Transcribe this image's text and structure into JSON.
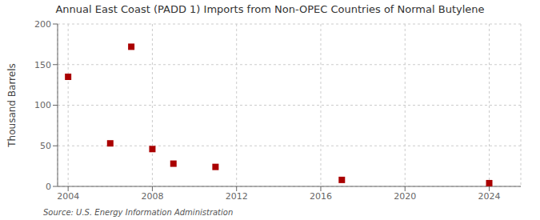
{
  "chart_data": {
    "type": "scatter",
    "title": "Annual East Coast (PADD 1) Imports from Non-OPEC Countries of Normal Butylene",
    "ylabel": "Thousand Barrels",
    "annotations": [
      "Source: U.S. Energy Information Administration"
    ],
    "x": [
      2004,
      2006,
      2007,
      2008,
      2009,
      2011,
      2017,
      2024
    ],
    "values": [
      135,
      53,
      172,
      46,
      28,
      24,
      8,
      4
    ],
    "color": "#aa0000",
    "marker": "square",
    "xlim": [
      2003.5,
      2025.5
    ],
    "xticks": [
      2004,
      2008,
      2012,
      2016,
      2020,
      2024
    ],
    "ylim": [
      0,
      200
    ],
    "yticks": [
      0,
      50,
      100,
      150,
      200
    ],
    "grid": true
  }
}
